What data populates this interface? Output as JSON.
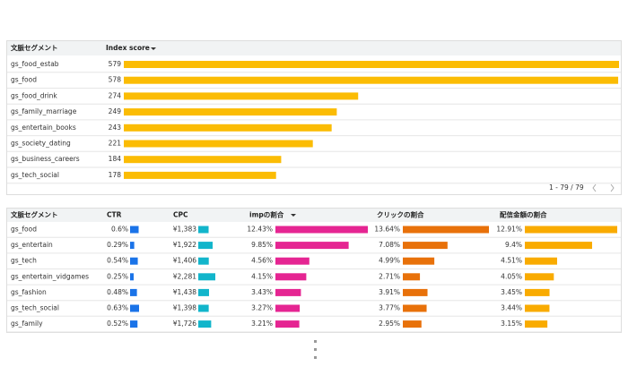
{
  "table1": {
    "columns": [
      "文脈セグメント",
      "Index score"
    ],
    "rows": [
      {
        "segment": "gs_food_estab",
        "score": 579
      },
      {
        "segment": "gs_food",
        "score": 578
      },
      {
        "segment": "gs_food_drink",
        "score": 274
      },
      {
        "segment": "gs_family_marriage",
        "score": 249
      },
      {
        "segment": "gs_entertain_books",
        "score": 243
      },
      {
        "segment": "gs_society_dating",
        "score": 221
      },
      {
        "segment": "gs_business_careers",
        "score": 184
      },
      {
        "segment": "gs_tech_social",
        "score": 178
      }
    ],
    "pagination": "1 - 79 / 79"
  },
  "table2": {
    "columns": [
      "文脈セグメント",
      "CTR",
      "CPC",
      "impの割合",
      "クリックの割合",
      "配信金額の割合"
    ],
    "rows": [
      {
        "segment": "gs_food",
        "cells": [
          {
            "value": 0.6,
            "label": "0.6%"
          },
          {
            "value": 1383,
            "label": "¥1,383"
          },
          {
            "value": 12.43,
            "label": "12.43%"
          },
          {
            "value": 13.64,
            "label": "13.64%"
          },
          {
            "value": 12.91,
            "label": "12.91%"
          }
        ]
      },
      {
        "segment": "gs_entertain",
        "cells": [
          {
            "value": 0.29,
            "label": "0.29%"
          },
          {
            "value": 1922,
            "label": "¥1,922"
          },
          {
            "value": 9.85,
            "label": "9.85%"
          },
          {
            "value": 7.08,
            "label": "7.08%"
          },
          {
            "value": 9.4,
            "label": "9.4%"
          }
        ]
      },
      {
        "segment": "gs_tech",
        "cells": [
          {
            "value": 0.54,
            "label": "0.54%"
          },
          {
            "value": 1406,
            "label": "¥1,406"
          },
          {
            "value": 4.56,
            "label": "4.56%"
          },
          {
            "value": 4.99,
            "label": "4.99%"
          },
          {
            "value": 4.51,
            "label": "4.51%"
          }
        ]
      },
      {
        "segment": "gs_entertain_vidgames",
        "cells": [
          {
            "value": 0.25,
            "label": "0.25%"
          },
          {
            "value": 2281,
            "label": "¥2,281"
          },
          {
            "value": 4.15,
            "label": "4.15%"
          },
          {
            "value": 2.71,
            "label": "2.71%"
          },
          {
            "value": 4.05,
            "label": "4.05%"
          }
        ]
      },
      {
        "segment": "gs_fashion",
        "cells": [
          {
            "value": 0.48,
            "label": "0.48%"
          },
          {
            "value": 1438,
            "label": "¥1,438"
          },
          {
            "value": 3.43,
            "label": "3.43%"
          },
          {
            "value": 3.91,
            "label": "3.91%"
          },
          {
            "value": 3.45,
            "label": "3.45%"
          }
        ]
      },
      {
        "segment": "gs_tech_social",
        "cells": [
          {
            "value": 0.63,
            "label": "0.63%"
          },
          {
            "value": 1398,
            "label": "¥1,398"
          },
          {
            "value": 3.27,
            "label": "3.27%"
          },
          {
            "value": 3.77,
            "label": "3.77%"
          },
          {
            "value": 3.44,
            "label": "3.44%"
          }
        ]
      },
      {
        "segment": "gs_family",
        "cells": [
          {
            "value": 0.52,
            "label": "0.52%"
          },
          {
            "value": 1726,
            "label": "¥1,726"
          },
          {
            "value": 3.21,
            "label": "3.21%"
          },
          {
            "value": 2.95,
            "label": "2.95%"
          },
          {
            "value": 3.15,
            "label": "3.15%"
          }
        ]
      }
    ]
  }
}
